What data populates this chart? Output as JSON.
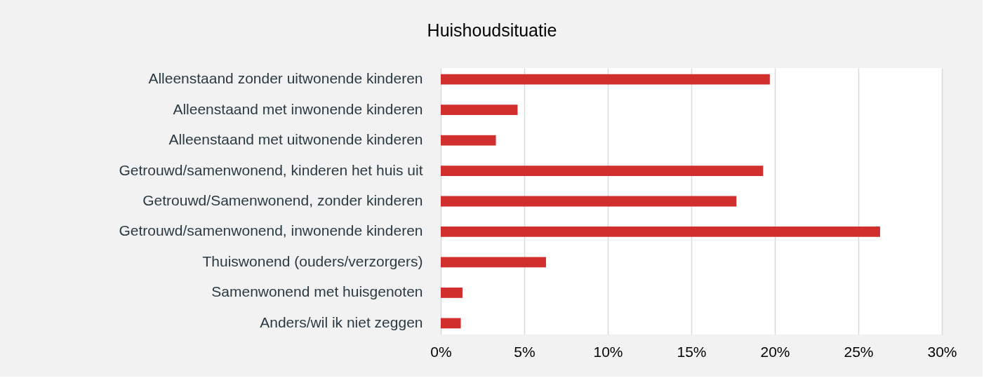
{
  "chart_data": {
    "type": "bar",
    "orientation": "horizontal",
    "title": "Huishoudsituatie",
    "categories": [
      "Alleenstaand zonder uitwonende kinderen",
      "Alleenstaand met inwonende kinderen",
      "Alleenstaand met uitwonende kinderen",
      "Getrouwd/samenwonend, kinderen het huis uit",
      "Getrouwd/Samenwonend, zonder kinderen",
      "Getrouwd/samenwonend, inwonende kinderen",
      "Thuiswonend (ouders/verzorgers)",
      "Samenwonend met huisgenoten",
      "Anders/wil ik niet zeggen"
    ],
    "values": [
      19.7,
      4.6,
      3.3,
      19.3,
      17.7,
      26.3,
      6.3,
      1.3,
      1.2
    ],
    "color": "#d12e2e",
    "xlim": [
      0,
      30
    ],
    "xticks": [
      {
        "value": 0,
        "label": "0%"
      },
      {
        "value": 5,
        "label": "5%"
      },
      {
        "value": 10,
        "label": "10%"
      },
      {
        "value": 15,
        "label": "15%"
      },
      {
        "value": 20,
        "label": "20%"
      },
      {
        "value": 25,
        "label": "25%"
      },
      {
        "value": 30,
        "label": "30%"
      }
    ],
    "grid": "x"
  }
}
